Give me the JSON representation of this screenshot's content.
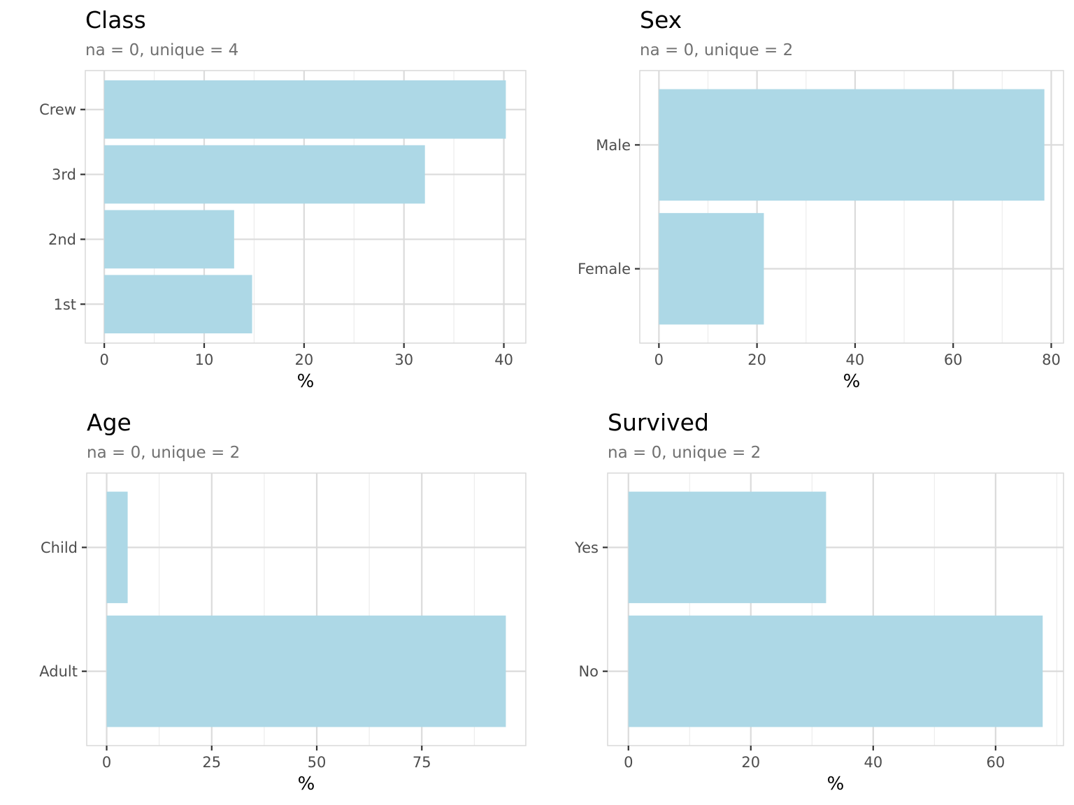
{
  "chart_data": [
    {
      "type": "bar",
      "orientation": "horizontal",
      "title": "Class",
      "subtitle": "na = 0, unique = 4",
      "xlabel": "%",
      "categories": [
        "1st",
        "2nd",
        "3rd",
        "Crew"
      ],
      "values": [
        14.8,
        13.0,
        32.1,
        40.2
      ],
      "xlim": [
        -1.9,
        42.2
      ],
      "xticks": [
        0,
        10,
        20,
        30,
        40
      ],
      "bar_color": "#add8e6",
      "grid": true
    },
    {
      "type": "bar",
      "orientation": "horizontal",
      "title": "Sex",
      "subtitle": "na = 0, unique = 2",
      "xlabel": "%",
      "categories": [
        "Female",
        "Male"
      ],
      "values": [
        21.4,
        78.6
      ],
      "xlim": [
        -3.9,
        82.5
      ],
      "xticks": [
        0,
        20,
        40,
        60,
        80
      ],
      "bar_color": "#add8e6",
      "grid": true
    },
    {
      "type": "bar",
      "orientation": "horizontal",
      "title": "Age",
      "subtitle": "na = 0, unique = 2",
      "xlabel": "%",
      "categories": [
        "Adult",
        "Child"
      ],
      "values": [
        95.0,
        5.0
      ],
      "xlim": [
        -4.75,
        99.75
      ],
      "xticks": [
        0,
        25,
        50,
        75
      ],
      "bar_color": "#add8e6",
      "grid": true
    },
    {
      "type": "bar",
      "orientation": "horizontal",
      "title": "Survived",
      "subtitle": "na = 0, unique = 2",
      "xlabel": "%",
      "categories": [
        "No",
        "Yes"
      ],
      "values": [
        67.7,
        32.3
      ],
      "xlim": [
        -3.4,
        71.1
      ],
      "xticks": [
        0,
        20,
        40,
        60
      ],
      "bar_color": "#add8e6",
      "grid": true
    }
  ]
}
